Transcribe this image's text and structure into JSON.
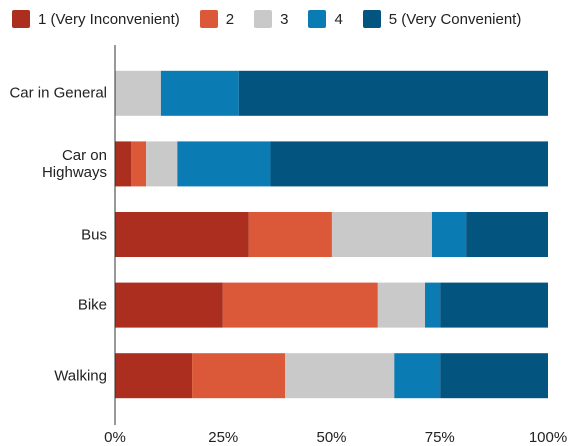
{
  "chart_data": {
    "type": "stacked_barh",
    "categories": [
      "Car in General",
      "Car on Highways",
      "Bus",
      "Bike",
      "Walking"
    ],
    "series": [
      {
        "name": "1 (Very Inconvenient)",
        "color": "#ab2e1f",
        "values": [
          0,
          3.7,
          30.9,
          24.9,
          17.8
        ]
      },
      {
        "name": "2",
        "color": "#db5939",
        "values": [
          0,
          3.5,
          19.2,
          35.8,
          21.5
        ]
      },
      {
        "name": "3",
        "color": "#c9c9c9",
        "values": [
          10.6,
          7.2,
          23.1,
          10.9,
          25.2
        ]
      },
      {
        "name": "4",
        "color": "#0a7bb3",
        "values": [
          18,
          21.5,
          7.9,
          3.5,
          10.6
        ]
      },
      {
        "name": "5 (Very Convenient)",
        "color": "#03547f",
        "values": [
          71.4,
          64.1,
          18.9,
          24.9,
          24.9
        ]
      }
    ],
    "xlim": [
      0,
      100
    ],
    "xticks": [
      {
        "value": 0,
        "label": "0%"
      },
      {
        "value": 25,
        "label": "25%"
      },
      {
        "value": 50,
        "label": "50%"
      },
      {
        "value": 75,
        "label": "75%"
      },
      {
        "value": 100,
        "label": "100%"
      }
    ]
  }
}
